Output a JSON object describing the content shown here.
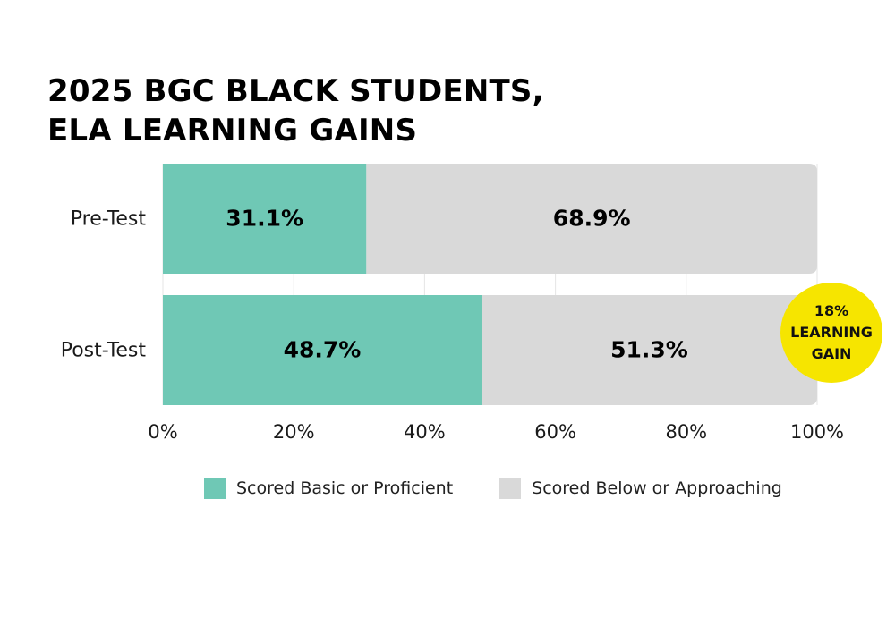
{
  "chart_data": {
    "type": "bar",
    "orientation": "horizontal",
    "stacked": true,
    "title_lines": [
      "2025 BGC BLACK STUDENTS,",
      "ELA LEARNING GAINS"
    ],
    "categories": [
      "Pre-Test",
      "Post-Test"
    ],
    "series": [
      {
        "name": "Scored Basic or Proficient",
        "color": "#6fc8b5",
        "values": [
          31.1,
          48.7
        ],
        "labels": [
          "31.1%",
          "48.7%"
        ]
      },
      {
        "name": "Scored Below or Approaching",
        "color": "#d9d9d9",
        "values": [
          68.9,
          51.3
        ],
        "labels": [
          "68.9%",
          "51.3%"
        ]
      }
    ],
    "xlim": [
      0,
      100
    ],
    "xticks": [
      0,
      20,
      40,
      60,
      80,
      100
    ],
    "xtick_labels": [
      "0%",
      "20%",
      "40%",
      "60%",
      "80%",
      "100%"
    ],
    "grid": true,
    "legend_position": "bottom",
    "annotation": {
      "lines": [
        "18%",
        "LEARNING",
        "GAIN"
      ],
      "color": "#f6e500"
    }
  }
}
